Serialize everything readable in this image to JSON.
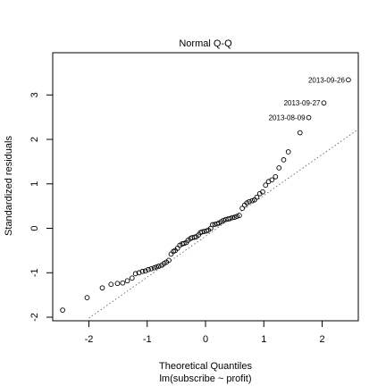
{
  "chart_data": {
    "type": "scatter",
    "title": "Normal Q-Q",
    "xlabel": "Theoretical Quantiles",
    "subtitle": "lm(subscribe ~ profit)",
    "ylabel": "Standardized residuals",
    "xlim": [
      -2.62,
      2.62
    ],
    "ylim": [
      -2.08,
      3.95
    ],
    "x_ticks": [
      -2,
      -1,
      0,
      1,
      2
    ],
    "y_ticks": [
      -2,
      -1,
      0,
      1,
      2,
      3
    ],
    "grid": false,
    "reference_line": {
      "style": "dotted",
      "points": [
        [
          -2,
          -2.02
        ],
        [
          2.62,
          2.23
        ]
      ]
    },
    "annotations": [
      {
        "label": "2013-09-26",
        "x": 2.45,
        "y": 3.34
      },
      {
        "label": "2013-09-27",
        "x": 2.03,
        "y": 2.82
      },
      {
        "label": "2013-08-09",
        "x": 1.77,
        "y": 2.49
      }
    ],
    "points": [
      [
        -2.45,
        -1.84
      ],
      [
        -2.03,
        -1.56
      ],
      [
        -1.77,
        -1.34
      ],
      [
        -1.62,
        -1.26
      ],
      [
        -1.51,
        -1.24
      ],
      [
        -1.42,
        -1.23
      ],
      [
        -1.34,
        -1.18
      ],
      [
        -1.26,
        -1.12
      ],
      [
        -1.2,
        -1.02
      ],
      [
        -1.14,
        -1.0
      ],
      [
        -1.08,
        -0.97
      ],
      [
        -1.03,
        -0.96
      ],
      [
        -0.98,
        -0.93
      ],
      [
        -0.93,
        -0.91
      ],
      [
        -0.88,
        -0.89
      ],
      [
        -0.84,
        -0.87
      ],
      [
        -0.8,
        -0.85
      ],
      [
        -0.75,
        -0.83
      ],
      [
        -0.71,
        -0.79
      ],
      [
        -0.67,
        -0.76
      ],
      [
        -0.63,
        -0.72
      ],
      [
        -0.59,
        -0.58
      ],
      [
        -0.55,
        -0.52
      ],
      [
        -0.52,
        -0.5
      ],
      [
        -0.48,
        -0.45
      ],
      [
        -0.44,
        -0.38
      ],
      [
        -0.4,
        -0.35
      ],
      [
        -0.37,
        -0.34
      ],
      [
        -0.33,
        -0.32
      ],
      [
        -0.3,
        -0.27
      ],
      [
        -0.26,
        -0.23
      ],
      [
        -0.23,
        -0.21
      ],
      [
        -0.19,
        -0.2
      ],
      [
        -0.16,
        -0.19
      ],
      [
        -0.12,
        -0.15
      ],
      [
        -0.09,
        -0.1
      ],
      [
        -0.06,
        -0.08
      ],
      [
        -0.02,
        -0.07
      ],
      [
        0.02,
        -0.06
      ],
      [
        0.05,
        -0.04
      ],
      [
        0.09,
        0.0
      ],
      [
        0.12,
        0.08
      ],
      [
        0.16,
        0.09
      ],
      [
        0.2,
        0.1
      ],
      [
        0.23,
        0.12
      ],
      [
        0.27,
        0.15
      ],
      [
        0.31,
        0.18
      ],
      [
        0.35,
        0.2
      ],
      [
        0.39,
        0.21
      ],
      [
        0.42,
        0.22
      ],
      [
        0.46,
        0.24
      ],
      [
        0.5,
        0.25
      ],
      [
        0.54,
        0.27
      ],
      [
        0.58,
        0.29
      ],
      [
        0.63,
        0.45
      ],
      [
        0.67,
        0.52
      ],
      [
        0.71,
        0.57
      ],
      [
        0.75,
        0.6
      ],
      [
        0.8,
        0.62
      ],
      [
        0.84,
        0.64
      ],
      [
        0.88,
        0.7
      ],
      [
        0.93,
        0.78
      ],
      [
        0.98,
        0.82
      ],
      [
        1.03,
        0.97
      ],
      [
        1.08,
        1.05
      ],
      [
        1.14,
        1.09
      ],
      [
        1.2,
        1.16
      ],
      [
        1.26,
        1.36
      ],
      [
        1.34,
        1.54
      ],
      [
        1.42,
        1.72
      ],
      [
        1.62,
        2.15
      ],
      [
        1.77,
        2.49
      ],
      [
        2.03,
        2.82
      ],
      [
        2.45,
        3.34
      ]
    ]
  }
}
